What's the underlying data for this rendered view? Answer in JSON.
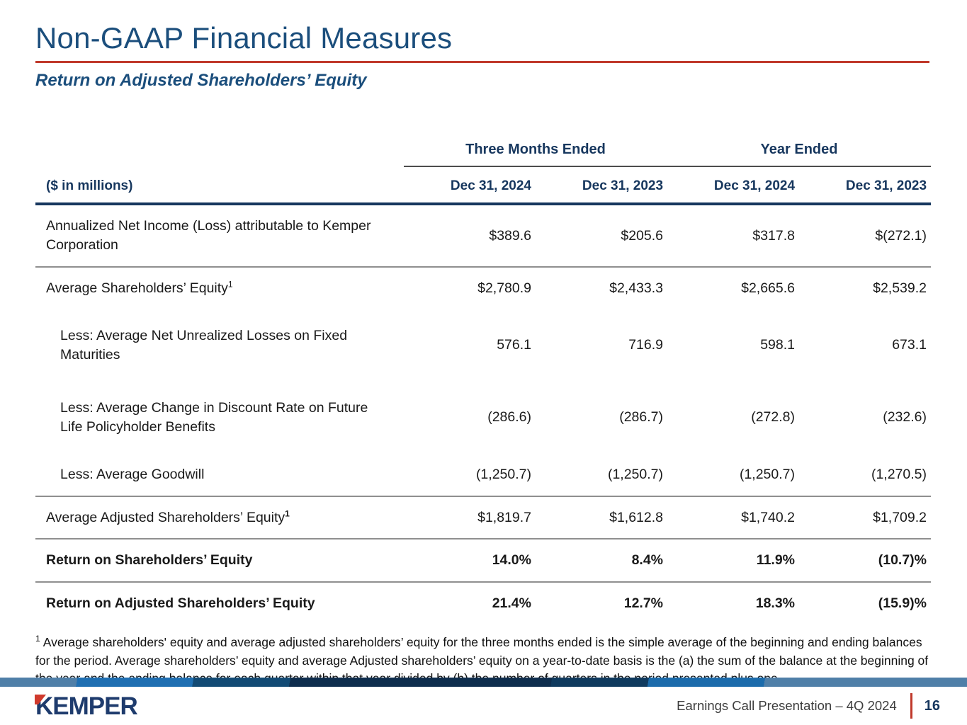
{
  "slide": {
    "title": "Non-GAAP Financial Measures",
    "subtitle": "Return on Adjusted Shareholders’ Equity"
  },
  "table": {
    "units_label": "($ in millions)",
    "col_groups": [
      {
        "label": "Three Months Ended",
        "span": 2
      },
      {
        "label": "Year Ended",
        "span": 2
      }
    ],
    "columns": [
      "Dec 31, 2024",
      "Dec 31, 2023",
      "Dec 31, 2024",
      "Dec 31, 2023"
    ],
    "rows": [
      {
        "label": "Annualized Net Income (Loss) attributable to Kemper Corporation",
        "sup": "",
        "indent": false,
        "bold": false,
        "tall": false,
        "separator_below": true,
        "values": [
          "$389.6",
          "$205.6",
          "$317.8",
          "$(272.1)"
        ]
      },
      {
        "label": "Average Shareholders’ Equity",
        "sup": "1",
        "sup_bold": false,
        "indent": false,
        "bold": false,
        "tall": false,
        "separator_below": false,
        "values": [
          "$2,780.9",
          "$2,433.3",
          "$2,665.6",
          "$2,539.2"
        ]
      },
      {
        "label": "Less: Average Net Unrealized Losses on Fixed Maturities",
        "sup": "",
        "indent": true,
        "bold": false,
        "tall": true,
        "separator_below": false,
        "values": [
          "576.1",
          "716.9",
          "598.1",
          "673.1"
        ]
      },
      {
        "label": "Less: Average Change in Discount Rate on Future Life Policyholder Benefits",
        "sup": "",
        "indent": true,
        "bold": false,
        "tall": true,
        "separator_below": false,
        "values": [
          "(286.6)",
          "(286.7)",
          "(272.8)",
          "(232.6)"
        ]
      },
      {
        "label": "Less: Average Goodwill",
        "sup": "",
        "indent": true,
        "bold": false,
        "tall": false,
        "separator_below": true,
        "values": [
          "(1,250.7)",
          "(1,250.7)",
          "(1,250.7)",
          "(1,270.5)"
        ]
      },
      {
        "label": "Average Adjusted Shareholders’ Equity",
        "sup": "1",
        "sup_bold": true,
        "indent": false,
        "bold": false,
        "tall": false,
        "separator_below": true,
        "values": [
          "$1,819.7",
          "$1,612.8",
          "$1,740.2",
          "$1,709.2"
        ]
      },
      {
        "label": "Return on Shareholders’ Equity",
        "sup": "",
        "indent": false,
        "bold": true,
        "tall": false,
        "separator_below": true,
        "values": [
          "14.0%",
          "8.4%",
          "11.9%",
          "(10.7)%"
        ]
      },
      {
        "label": "Return on Adjusted Shareholders’ Equity",
        "sup": "",
        "indent": false,
        "bold": true,
        "tall": false,
        "separator_below": false,
        "values": [
          "21.4%",
          "12.7%",
          "18.3%",
          "(15.9)%"
        ]
      }
    ]
  },
  "footnote": {
    "sup": "1",
    "text": "Average shareholders' equity and average adjusted shareholders’ equity for the three months ended is the simple average of the beginning and ending balances for the period. Average shareholders’ equity and average Adjusted shareholders’ equity on a year-to-date basis is the (a) the sum of the balance at the beginning of the year and the ending balance for each quarter within that year divided by (b) the number of quarters in the period presented plus one."
  },
  "footer": {
    "logo_text": "KEMPER",
    "caption": "Earnings Call Presentation – 4Q 2024",
    "page_number": "16"
  },
  "colors": {
    "accent_red": "#C0392B",
    "header_navy": "#17375E",
    "title_blue": "#1B4E7C",
    "logo_navy": "#1E3B6D",
    "logo_red": "#D03A2D"
  }
}
